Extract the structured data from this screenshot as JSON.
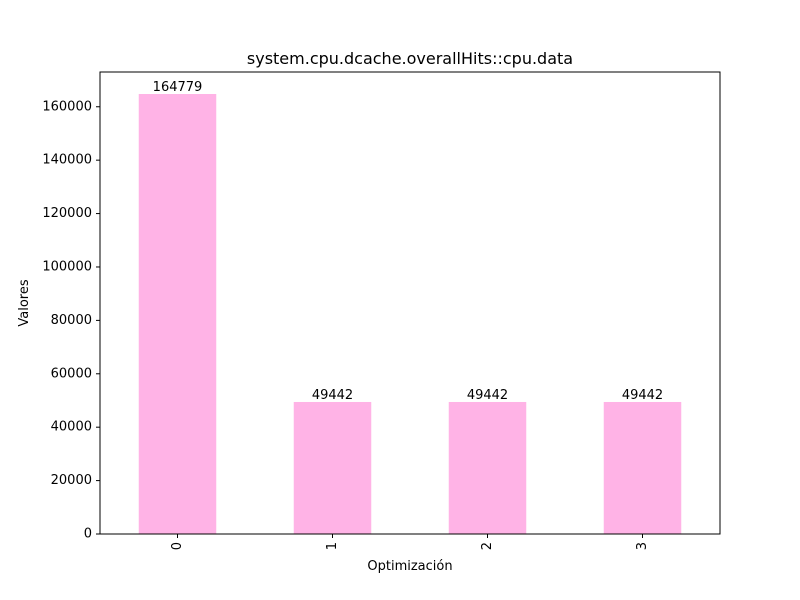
{
  "chart_data": {
    "type": "bar",
    "title": "system.cpu.dcache.overallHits::cpu.data",
    "xlabel": "Optimización",
    "ylabel": "Valores",
    "categories": [
      "0",
      "1",
      "2",
      "3"
    ],
    "values": [
      164779,
      49442,
      49442,
      49442
    ],
    "data_labels": [
      "164779",
      "49442",
      "49442",
      "49442"
    ],
    "ylim": [
      0,
      173018
    ],
    "yticks": [
      0,
      20000,
      40000,
      60000,
      80000,
      100000,
      120000,
      140000,
      160000
    ],
    "ytick_labels": [
      "0",
      "20000",
      "40000",
      "60000",
      "80000",
      "100000",
      "120000",
      "140000",
      "160000"
    ],
    "bar_color": "#ffb3e6",
    "grid": false,
    "legend": "none"
  }
}
